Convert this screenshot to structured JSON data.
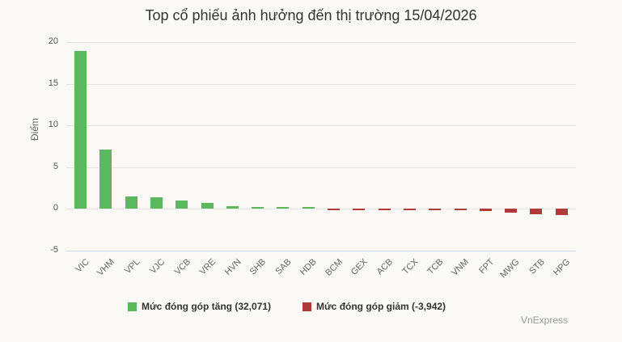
{
  "title": "Top cổ phiếu ảnh hưởng đến thị trường 15/04/2026",
  "credit": "VnExpress",
  "colors": {
    "positive": "#5cb85c",
    "negative": "#b03a3a"
  },
  "legend": [
    {
      "label": "Mức đóng góp tăng (32,071)",
      "color": "#5cb85c"
    },
    {
      "label": "Mức đóng góp giảm (-3,942)",
      "color": "#b03a3a"
    }
  ],
  "chart_data": {
    "type": "bar",
    "title": "Top cổ phiếu ảnh hưởng đến thị trường 15/04/2026",
    "xlabel": "",
    "ylabel": "Điểm",
    "ylim": [
      -5,
      20
    ],
    "yticks": [
      20,
      15,
      10,
      5,
      0,
      -5
    ],
    "grid": true,
    "legend_position": "bottom",
    "categories": [
      "VIC",
      "VHM",
      "VPL",
      "VJC",
      "VCB",
      "VRE",
      "HVN",
      "SHB",
      "SAB",
      "HDB",
      "BCM",
      "GEX",
      "ACB",
      "TCX",
      "TCB",
      "VNM",
      "FPT",
      "MWG",
      "STB",
      "HPG"
    ],
    "values": [
      18.9,
      7.1,
      1.5,
      1.4,
      1.0,
      0.7,
      0.3,
      0.2,
      0.2,
      0.2,
      -0.1,
      -0.1,
      -0.1,
      -0.1,
      -0.2,
      -0.2,
      -0.3,
      -0.45,
      -0.65,
      -0.8
    ],
    "series": [
      {
        "name": "Mức đóng góp tăng (32,071)",
        "values": [
          18.9,
          7.1,
          1.5,
          1.4,
          1.0,
          0.7,
          0.3,
          0.2,
          0.2,
          0.2,
          null,
          null,
          null,
          null,
          null,
          null,
          null,
          null,
          null,
          null
        ]
      },
      {
        "name": "Mức đóng góp giảm (-3,942)",
        "values": [
          null,
          null,
          null,
          null,
          null,
          null,
          null,
          null,
          null,
          null,
          -0.1,
          -0.1,
          -0.1,
          -0.1,
          -0.2,
          -0.2,
          -0.3,
          -0.45,
          -0.65,
          -0.8
        ]
      }
    ]
  }
}
